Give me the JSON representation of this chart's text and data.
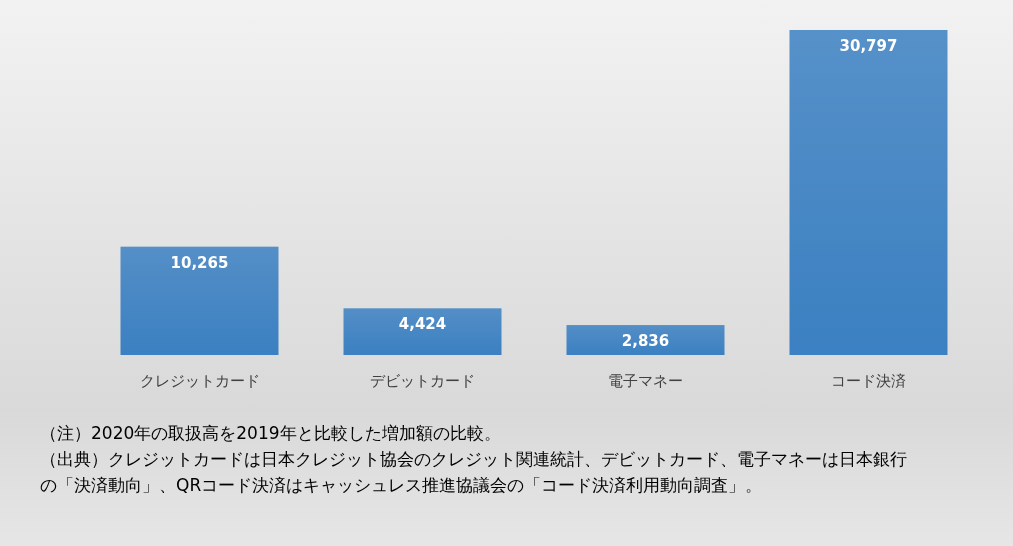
{
  "chart_data": {
    "type": "bar",
    "categories": [
      "クレジットカード",
      "デビットカード",
      "電子マネー",
      "コード決済"
    ],
    "values": [
      10265,
      4424,
      2836,
      30797
    ],
    "color": "#3b80c2",
    "value_labels": [
      "10,265",
      "4,424",
      "2,836",
      "30,797"
    ],
    "annotations": [
      "（注）2020年の取扱高を2019年と比較した増加額の比較。",
      "（出典）クレジットカードは日本クレジット協会のクレジット関連統計、デビットカード、電子マネーは日本銀行の「決済動向」、QRコード決済はキャッシュレス推進協議会の「コード決済利用動向調査」。"
    ]
  }
}
